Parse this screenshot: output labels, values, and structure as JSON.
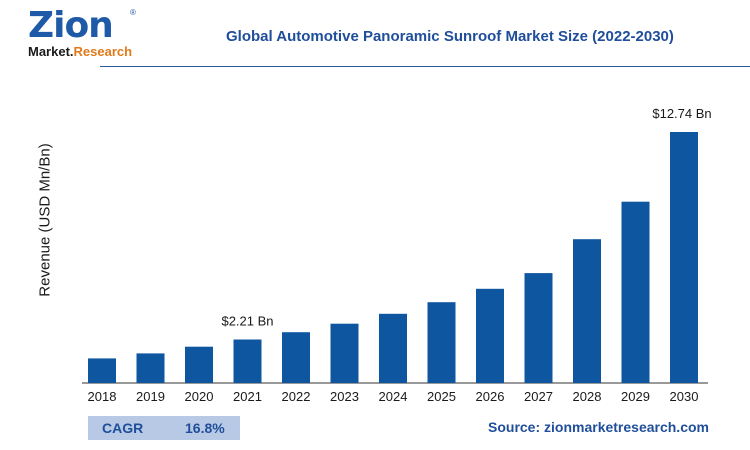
{
  "logo": {
    "main": "Zion",
    "sub_a": "Market.",
    "sub_b": "Research",
    "mark": "®"
  },
  "title": "Global Automotive Panoramic Sunroof Market Size (2022-2030)",
  "footer": {
    "cagr_label": "CAGR",
    "cagr_value": "16.8%",
    "source": "Source: zionmarketresearch.com"
  },
  "colors": {
    "bar": "#0f56a0",
    "title": "#1f4e9a",
    "cagr_bg": "#b7c9e4",
    "logo_orange": "#e07a1a"
  },
  "chart_data": {
    "type": "bar",
    "title": "Global Automotive Panoramic Sunroof Market Size (2022-2030)",
    "xlabel": "",
    "ylabel": "Revenue (USD Mn/Bn)",
    "categories": [
      "2018",
      "2019",
      "2020",
      "2021",
      "2022",
      "2023",
      "2024",
      "2025",
      "2026",
      "2027",
      "2028",
      "2029",
      "2030"
    ],
    "values": [
      1.25,
      1.5,
      1.84,
      2.21,
      2.58,
      3.01,
      3.51,
      4.1,
      4.78,
      5.58,
      7.3,
      9.2,
      12.74
    ],
    "data_labels": [
      {
        "index": 3,
        "text": "$2.21 Bn"
      },
      {
        "index": 12,
        "text": "$12.74 Bn"
      }
    ],
    "ylim": [
      0,
      12.74
    ],
    "grid": false,
    "legend": "none"
  }
}
